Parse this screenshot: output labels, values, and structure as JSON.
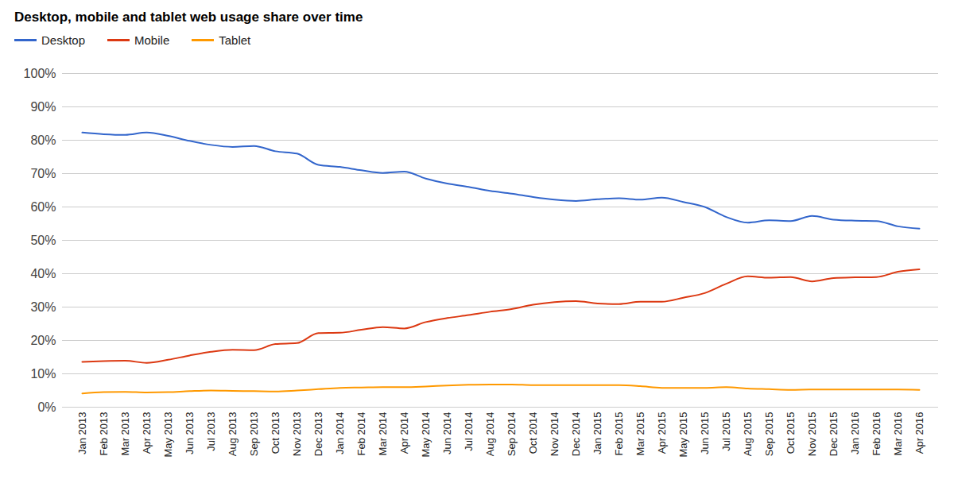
{
  "chart_data": {
    "type": "line",
    "title": "Desktop, mobile and tablet web usage share over time",
    "x": [
      "Jan 2013",
      "Feb 2013",
      "Mar 2013",
      "Apr 2013",
      "May 2013",
      "Jun 2013",
      "Jul 2013",
      "Aug 2013",
      "Sep 2013",
      "Oct 2013",
      "Nov 2013",
      "Dec 2013",
      "Jan 2014",
      "Feb 2014",
      "Mar 2014",
      "Apr 2014",
      "May 2014",
      "Jun 2014",
      "Jul 2014",
      "Aug 2014",
      "Sep 2014",
      "Oct 2014",
      "Nov 2014",
      "Dec 2014",
      "Jan 2015",
      "Feb 2015",
      "Mar 2015",
      "Apr 2015",
      "May 2015",
      "Jun 2015",
      "Jul 2015",
      "Aug 2015",
      "Sep 2015",
      "Oct 2015",
      "Nov 2015",
      "Dec 2015",
      "Jan 2016",
      "Feb 2016",
      "Mar 2016",
      "Apr 2016"
    ],
    "series": [
      {
        "name": "Desktop",
        "color": "#3366cc",
        "values": [
          82.3,
          81.8,
          81.6,
          82.3,
          81.3,
          79.8,
          78.6,
          78.0,
          78.3,
          76.7,
          76.0,
          72.6,
          72.0,
          71.0,
          70.2,
          70.6,
          68.5,
          67.0,
          66.0,
          64.8,
          64.0,
          63.0,
          62.2,
          61.8,
          62.3,
          62.6,
          62.2,
          62.8,
          61.5,
          60.0,
          57.0,
          55.3,
          56.0,
          55.8,
          57.3,
          56.2,
          55.9,
          55.8,
          54.2,
          53.5
        ]
      },
      {
        "name": "Mobile",
        "color": "#dc3912",
        "values": [
          13.6,
          13.8,
          13.9,
          13.3,
          14.2,
          15.5,
          16.6,
          17.2,
          17.1,
          18.9,
          19.2,
          22.2,
          22.3,
          23.2,
          24.0,
          23.6,
          25.5,
          26.7,
          27.6,
          28.6,
          29.4,
          30.7,
          31.5,
          31.8,
          31.1,
          30.9,
          31.6,
          31.6,
          32.8,
          34.2,
          37.0,
          39.2,
          38.8,
          39.0,
          37.7,
          38.7,
          38.9,
          39.0,
          40.6,
          41.3
        ]
      },
      {
        "name": "Tablet",
        "color": "#ff9900",
        "values": [
          4.1,
          4.5,
          4.6,
          4.4,
          4.5,
          4.8,
          5.0,
          4.9,
          4.8,
          4.7,
          5.0,
          5.4,
          5.8,
          5.9,
          6.0,
          6.0,
          6.2,
          6.5,
          6.7,
          6.8,
          6.8,
          6.6,
          6.6,
          6.6,
          6.6,
          6.6,
          6.3,
          5.8,
          5.8,
          5.8,
          6.0,
          5.6,
          5.4,
          5.2,
          5.3,
          5.3,
          5.3,
          5.3,
          5.3,
          5.2
        ]
      }
    ],
    "ylim": [
      0,
      100
    ],
    "yticks": [
      {
        "value": 0,
        "label": "0%"
      },
      {
        "value": 10,
        "label": "10%"
      },
      {
        "value": 20,
        "label": "20%"
      },
      {
        "value": 30,
        "label": "30%"
      },
      {
        "value": 40,
        "label": "40%"
      },
      {
        "value": 50,
        "label": "50%"
      },
      {
        "value": 60,
        "label": "60%"
      },
      {
        "value": 70,
        "label": "70%"
      },
      {
        "value": 80,
        "label": "80%"
      },
      {
        "value": 90,
        "label": "90%"
      },
      {
        "value": 100,
        "label": "100%"
      }
    ],
    "grid": true,
    "legend": "top"
  }
}
